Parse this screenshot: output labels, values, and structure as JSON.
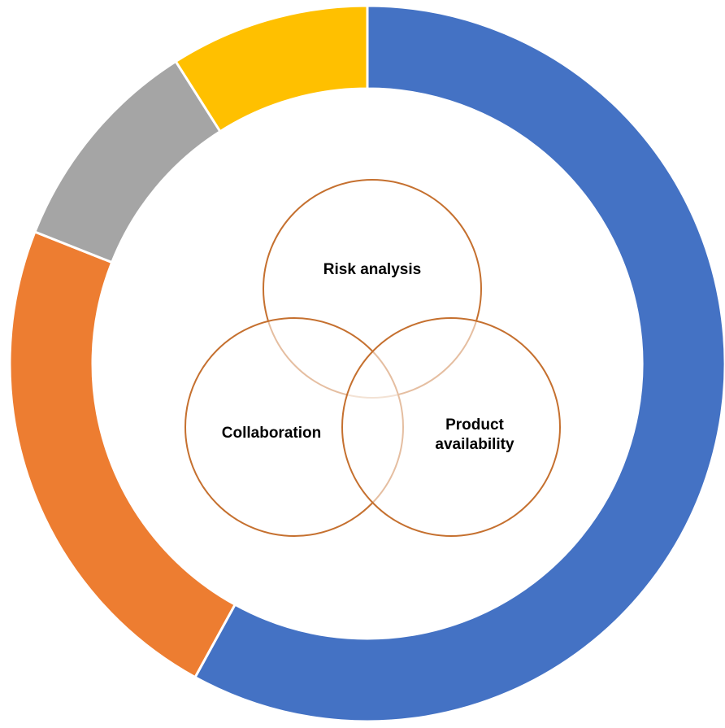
{
  "chart_data": {
    "type": "donut",
    "values": [
      58,
      23,
      10,
      9
    ],
    "colors": [
      "#4472c4",
      "#ed7d31",
      "#a5a5a5",
      "#ffc000"
    ]
  },
  "venn": {
    "circles": [
      {
        "label": [
          "Risk analysis"
        ]
      },
      {
        "label": [
          "Collaboration"
        ]
      },
      {
        "label": [
          "Product",
          "availability"
        ]
      }
    ],
    "color": "#c5702f"
  }
}
